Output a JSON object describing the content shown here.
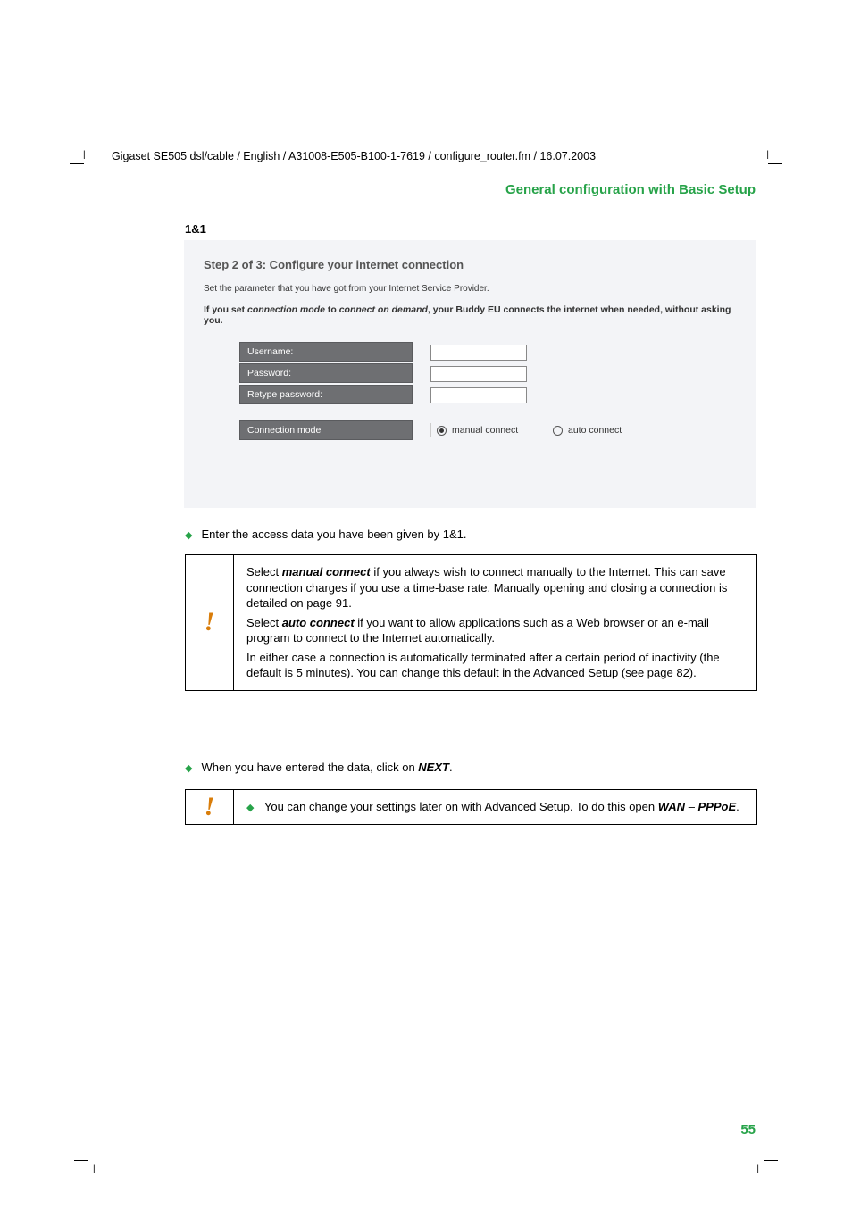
{
  "colors": {
    "accent_green": "#27a349",
    "accent_orange": "#d97d0a",
    "form_label_bg": "#6e6f72",
    "screenshot_bg": "#f3f4f7",
    "text": "#000000"
  },
  "header": {
    "path": "Gigaset SE505 dsl/cable / English / A31008-E505-B100-1-7619 / configure_router.fm / 16.07.2003",
    "title": "General configuration with Basic Setup"
  },
  "section_heading": "1&1",
  "screenshot": {
    "step_title": "Step 2 of 3: Configure your internet connection",
    "desc": "Set the parameter that you have got from your Internet Service Provider.",
    "note_prefix": "If you set ",
    "note_em1": "connection mode",
    "note_mid": " to ",
    "note_em2": "connect on demand",
    "note_suffix": ", your Buddy EU connects the internet when needed, without asking you.",
    "fields": {
      "username": "Username:",
      "password": "Password:",
      "retype": "Retype password:"
    },
    "conn_label": "Connection mode",
    "conn_opt1": "manual connect",
    "conn_opt2": "auto connect"
  },
  "bullets": {
    "b1": "Enter the access data you have been given by 1&1.",
    "b2_prefix": "When you have entered the data, click on ",
    "b2_strong": "NEXT",
    "b2_suffix": "."
  },
  "infobox1": {
    "p1a": "Select ",
    "p1b": "manual connect",
    "p1c": " if you always wish to connect manually to the Internet. This can save connection charges if you use a time-base rate. Manually opening and closing a connection is detailed on page 91.",
    "p2a": "Select ",
    "p2b": "auto connect",
    "p2c": " if you want to allow applications such as a Web browser or an e-mail program to connect to the Internet automatically.",
    "p3": "In either case a connection is automatically terminated after a certain period of inactivity (the default is 5 minutes). You can change this default in the Advanced Setup (see page 82)."
  },
  "infobox2": {
    "text_a": "You can change your settings later on with Advanced Setup. To do this open ",
    "text_b": "WAN",
    "text_c": " – ",
    "text_d": "PPPoE",
    "text_e": "."
  },
  "page_number": "55"
}
